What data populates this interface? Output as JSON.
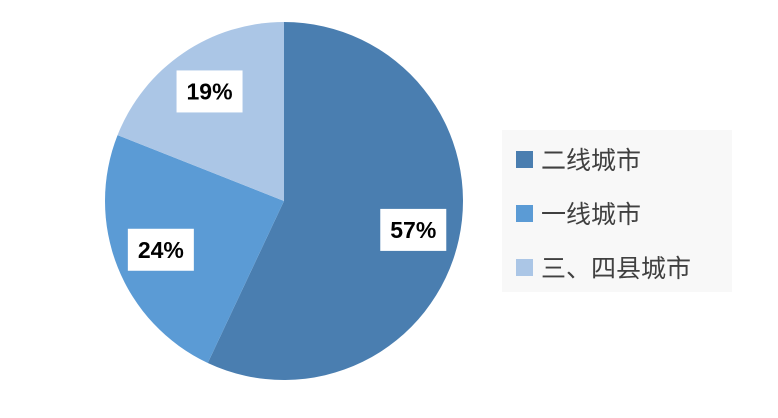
{
  "chart_data": {
    "type": "pie",
    "start_angle": "top, clockwise",
    "categories": [
      "二线城市",
      "一线城市",
      "三、四县城市"
    ],
    "values": [
      57,
      24,
      19
    ],
    "data_labels": [
      "57%",
      "24%",
      "19%"
    ],
    "colors": [
      "#4a7eb0",
      "#5b9bd5",
      "#abc6e6"
    ],
    "legend_position": "right"
  }
}
